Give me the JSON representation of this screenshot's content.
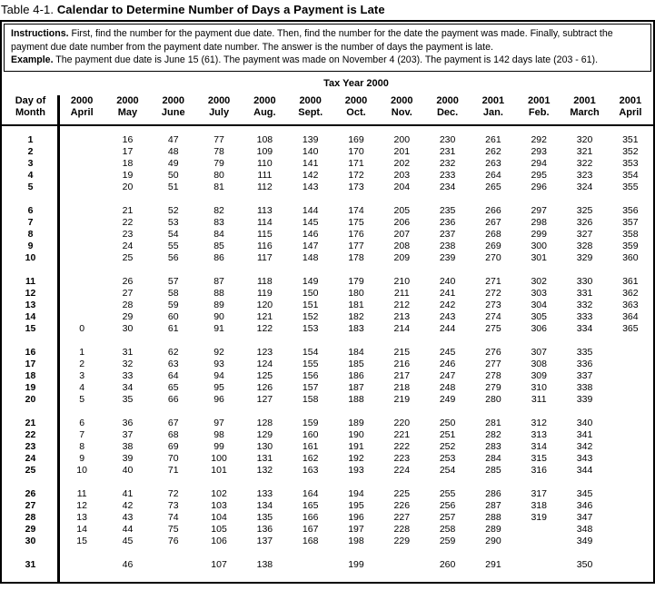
{
  "title": {
    "prefix": "Table 4-1.",
    "text": "Calendar to Determine Number of Days a Payment is Late"
  },
  "instructions": {
    "label1": "Instructions.",
    "text1": "First, find the number for the payment due date. Then, find the number for the date the payment was made. Finally, subtract the payment due date number from the payment date number. The answer is the number of days the payment is late.",
    "label2": "Example.",
    "text2": "The payment due date is June 15 (61). The payment was made on November 4 (203). The payment is 142 days late (203 - 61)."
  },
  "table": {
    "year_header": "Tax Year 2000",
    "day_col_header": [
      "Day of",
      "Month"
    ],
    "month_headers": [
      {
        "year": "2000",
        "month": "April"
      },
      {
        "year": "2000",
        "month": "May"
      },
      {
        "year": "2000",
        "month": "June"
      },
      {
        "year": "2000",
        "month": "July"
      },
      {
        "year": "2000",
        "month": "Aug."
      },
      {
        "year": "2000",
        "month": "Sept."
      },
      {
        "year": "2000",
        "month": "Oct."
      },
      {
        "year": "2000",
        "month": "Nov."
      },
      {
        "year": "2000",
        "month": "Dec."
      },
      {
        "year": "2001",
        "month": "Jan."
      },
      {
        "year": "2001",
        "month": "Feb."
      },
      {
        "year": "2001",
        "month": "March"
      },
      {
        "year": "2001",
        "month": "April"
      }
    ],
    "groups": [
      {
        "rows": [
          {
            "day": "1",
            "values": [
              "",
              "16",
              "47",
              "77",
              "108",
              "139",
              "169",
              "200",
              "230",
              "261",
              "292",
              "320",
              "351"
            ]
          },
          {
            "day": "2",
            "values": [
              "",
              "17",
              "48",
              "78",
              "109",
              "140",
              "170",
              "201",
              "231",
              "262",
              "293",
              "321",
              "352"
            ]
          },
          {
            "day": "3",
            "values": [
              "",
              "18",
              "49",
              "79",
              "110",
              "141",
              "171",
              "202",
              "232",
              "263",
              "294",
              "322",
              "353"
            ]
          },
          {
            "day": "4",
            "values": [
              "",
              "19",
              "50",
              "80",
              "111",
              "142",
              "172",
              "203",
              "233",
              "264",
              "295",
              "323",
              "354"
            ]
          },
          {
            "day": "5",
            "values": [
              "",
              "20",
              "51",
              "81",
              "112",
              "143",
              "173",
              "204",
              "234",
              "265",
              "296",
              "324",
              "355"
            ]
          }
        ]
      },
      {
        "rows": [
          {
            "day": "6",
            "values": [
              "",
              "21",
              "52",
              "82",
              "113",
              "144",
              "174",
              "205",
              "235",
              "266",
              "297",
              "325",
              "356"
            ]
          },
          {
            "day": "7",
            "values": [
              "",
              "22",
              "53",
              "83",
              "114",
              "145",
              "175",
              "206",
              "236",
              "267",
              "298",
              "326",
              "357"
            ]
          },
          {
            "day": "8",
            "values": [
              "",
              "23",
              "54",
              "84",
              "115",
              "146",
              "176",
              "207",
              "237",
              "268",
              "299",
              "327",
              "358"
            ]
          },
          {
            "day": "9",
            "values": [
              "",
              "24",
              "55",
              "85",
              "116",
              "147",
              "177",
              "208",
              "238",
              "269",
              "300",
              "328",
              "359"
            ]
          },
          {
            "day": "10",
            "values": [
              "",
              "25",
              "56",
              "86",
              "117",
              "148",
              "178",
              "209",
              "239",
              "270",
              "301",
              "329",
              "360"
            ]
          }
        ]
      },
      {
        "rows": [
          {
            "day": "11",
            "values": [
              "",
              "26",
              "57",
              "87",
              "118",
              "149",
              "179",
              "210",
              "240",
              "271",
              "302",
              "330",
              "361"
            ]
          },
          {
            "day": "12",
            "values": [
              "",
              "27",
              "58",
              "88",
              "119",
              "150",
              "180",
              "211",
              "241",
              "272",
              "303",
              "331",
              "362"
            ]
          },
          {
            "day": "13",
            "values": [
              "",
              "28",
              "59",
              "89",
              "120",
              "151",
              "181",
              "212",
              "242",
              "273",
              "304",
              "332",
              "363"
            ]
          },
          {
            "day": "14",
            "values": [
              "",
              "29",
              "60",
              "90",
              "121",
              "152",
              "182",
              "213",
              "243",
              "274",
              "305",
              "333",
              "364"
            ]
          },
          {
            "day": "15",
            "values": [
              "0",
              "30",
              "61",
              "91",
              "122",
              "153",
              "183",
              "214",
              "244",
              "275",
              "306",
              "334",
              "365"
            ]
          }
        ]
      },
      {
        "rows": [
          {
            "day": "16",
            "values": [
              "1",
              "31",
              "62",
              "92",
              "123",
              "154",
              "184",
              "215",
              "245",
              "276",
              "307",
              "335",
              ""
            ]
          },
          {
            "day": "17",
            "values": [
              "2",
              "32",
              "63",
              "93",
              "124",
              "155",
              "185",
              "216",
              "246",
              "277",
              "308",
              "336",
              ""
            ]
          },
          {
            "day": "18",
            "values": [
              "3",
              "33",
              "64",
              "94",
              "125",
              "156",
              "186",
              "217",
              "247",
              "278",
              "309",
              "337",
              ""
            ]
          },
          {
            "day": "19",
            "values": [
              "4",
              "34",
              "65",
              "95",
              "126",
              "157",
              "187",
              "218",
              "248",
              "279",
              "310",
              "338",
              ""
            ]
          },
          {
            "day": "20",
            "values": [
              "5",
              "35",
              "66",
              "96",
              "127",
              "158",
              "188",
              "219",
              "249",
              "280",
              "311",
              "339",
              ""
            ]
          }
        ]
      },
      {
        "rows": [
          {
            "day": "21",
            "values": [
              "6",
              "36",
              "67",
              "97",
              "128",
              "159",
              "189",
              "220",
              "250",
              "281",
              "312",
              "340",
              ""
            ]
          },
          {
            "day": "22",
            "values": [
              "7",
              "37",
              "68",
              "98",
              "129",
              "160",
              "190",
              "221",
              "251",
              "282",
              "313",
              "341",
              ""
            ]
          },
          {
            "day": "23",
            "values": [
              "8",
              "38",
              "69",
              "99",
              "130",
              "161",
              "191",
              "222",
              "252",
              "283",
              "314",
              "342",
              ""
            ]
          },
          {
            "day": "24",
            "values": [
              "9",
              "39",
              "70",
              "100",
              "131",
              "162",
              "192",
              "223",
              "253",
              "284",
              "315",
              "343",
              ""
            ]
          },
          {
            "day": "25",
            "values": [
              "10",
              "40",
              "71",
              "101",
              "132",
              "163",
              "193",
              "224",
              "254",
              "285",
              "316",
              "344",
              ""
            ]
          }
        ]
      },
      {
        "rows": [
          {
            "day": "26",
            "values": [
              "11",
              "41",
              "72",
              "102",
              "133",
              "164",
              "194",
              "225",
              "255",
              "286",
              "317",
              "345",
              ""
            ]
          },
          {
            "day": "27",
            "values": [
              "12",
              "42",
              "73",
              "103",
              "134",
              "165",
              "195",
              "226",
              "256",
              "287",
              "318",
              "346",
              ""
            ]
          },
          {
            "day": "28",
            "values": [
              "13",
              "43",
              "74",
              "104",
              "135",
              "166",
              "196",
              "227",
              "257",
              "288",
              "319",
              "347",
              ""
            ]
          },
          {
            "day": "29",
            "values": [
              "14",
              "44",
              "75",
              "105",
              "136",
              "167",
              "197",
              "228",
              "258",
              "289",
              "",
              "348",
              ""
            ]
          },
          {
            "day": "30",
            "values": [
              "15",
              "45",
              "76",
              "106",
              "137",
              "168",
              "198",
              "229",
              "259",
              "290",
              "",
              "349",
              ""
            ]
          }
        ]
      },
      {
        "rows": [
          {
            "day": "31",
            "values": [
              "",
              "46",
              "",
              "107",
              "138",
              "",
              "199",
              "",
              "260",
              "291",
              "",
              "350",
              ""
            ]
          }
        ]
      }
    ]
  }
}
